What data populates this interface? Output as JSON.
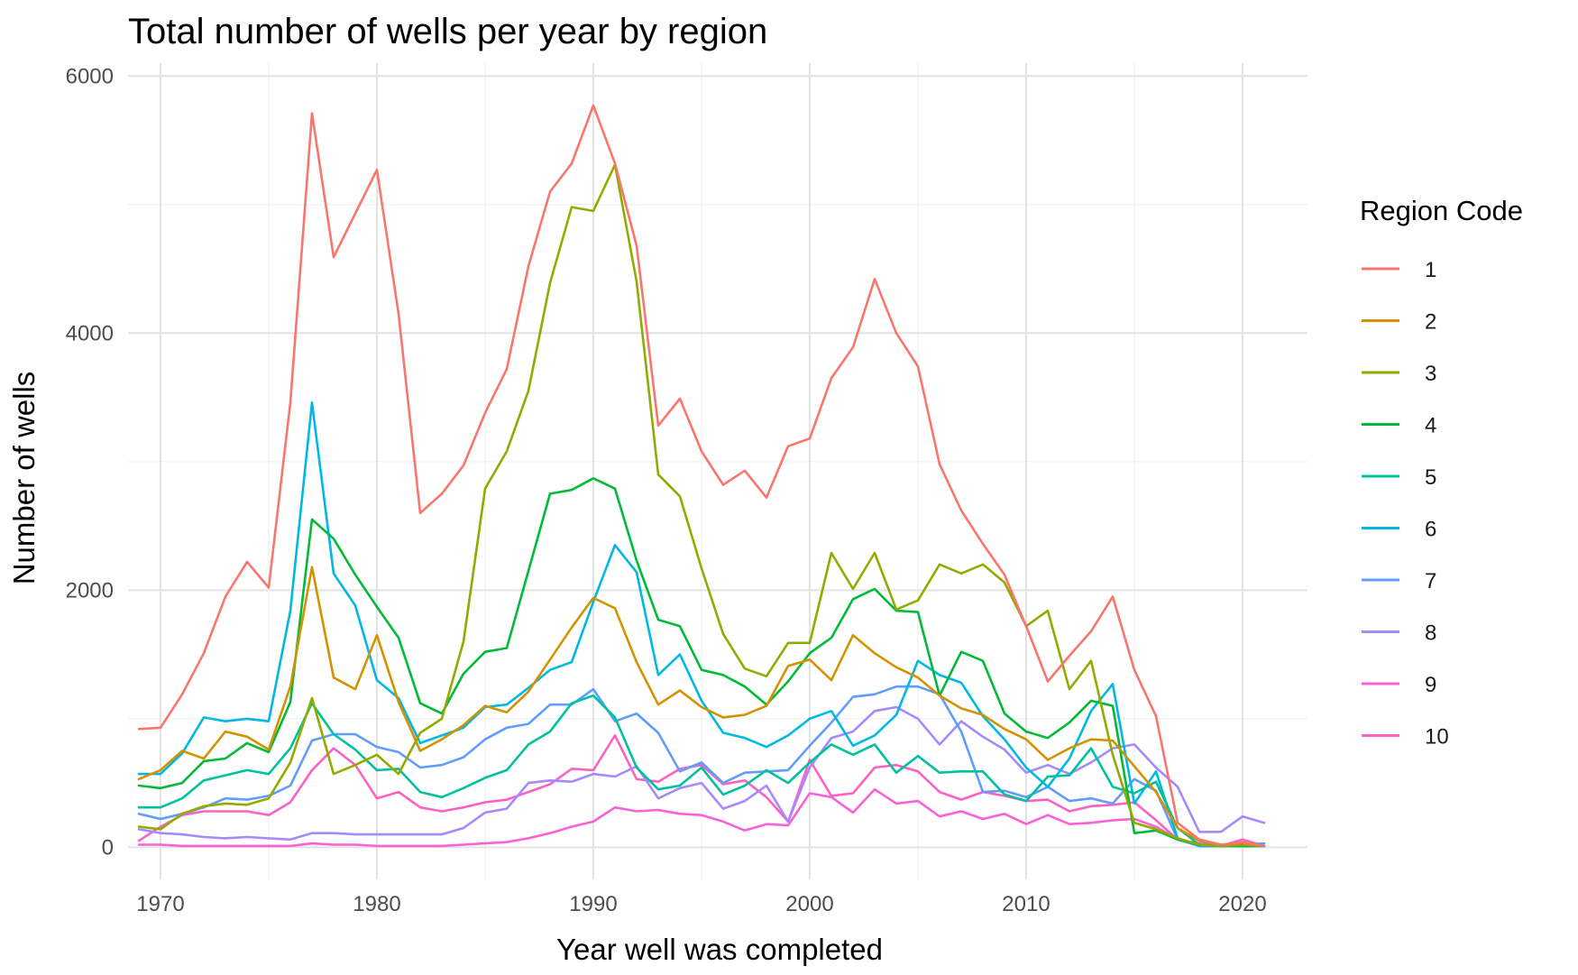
{
  "chart_data": {
    "type": "line",
    "title": "Total number of wells per year by region",
    "xlabel": "Year well was completed",
    "ylabel": "Number of wells",
    "xlim": [
      1968.5,
      2023
    ],
    "ylim": [
      -250,
      6100
    ],
    "x_ticks": [
      1970,
      1980,
      1990,
      2000,
      2010,
      2020
    ],
    "y_ticks": [
      0,
      2000,
      4000,
      6000
    ],
    "grid": true,
    "legend": {
      "title": "Region Code",
      "placement": "right"
    },
    "x": [
      1969,
      1970,
      1971,
      1972,
      1973,
      1974,
      1975,
      1976,
      1977,
      1978,
      1979,
      1980,
      1981,
      1982,
      1983,
      1984,
      1985,
      1986,
      1987,
      1988,
      1989,
      1990,
      1991,
      1992,
      1993,
      1994,
      1995,
      1996,
      1997,
      1998,
      1999,
      2000,
      2001,
      2002,
      2003,
      2004,
      2005,
      2006,
      2007,
      2008,
      2009,
      2010,
      2011,
      2012,
      2013,
      2014,
      2015,
      2016,
      2017,
      2018,
      2019,
      2020,
      2021
    ],
    "series": [
      {
        "name": "1",
        "color": "#F8766D",
        "values": [
          920,
          930,
          1190,
          1510,
          1950,
          2220,
          2020,
          3460,
          5710,
          4590,
          4930,
          5270,
          4150,
          2600,
          2750,
          2970,
          3380,
          3720,
          4520,
          5100,
          5320,
          5770,
          5320,
          4680,
          3280,
          3490,
          3080,
          2820,
          2930,
          2720,
          3120,
          3180,
          3650,
          3890,
          4420,
          4000,
          3740,
          2980,
          2620,
          2360,
          2120,
          1720,
          1290,
          1490,
          1680,
          1950,
          1380,
          1020,
          190,
          60,
          20,
          40,
          10
        ]
      },
      {
        "name": "2",
        "color": "#D39200",
        "values": [
          530,
          600,
          750,
          690,
          900,
          860,
          760,
          1250,
          2180,
          1320,
          1230,
          1650,
          1130,
          750,
          840,
          950,
          1100,
          1050,
          1210,
          1460,
          1710,
          1940,
          1860,
          1440,
          1110,
          1220,
          1090,
          1010,
          1030,
          1100,
          1410,
          1460,
          1300,
          1650,
          1510,
          1400,
          1320,
          1180,
          1080,
          1030,
          920,
          840,
          680,
          770,
          840,
          830,
          630,
          430,
          150,
          50,
          20,
          30,
          10
        ]
      },
      {
        "name": "3",
        "color": "#93AA00",
        "values": [
          160,
          140,
          260,
          320,
          340,
          330,
          380,
          660,
          1160,
          570,
          640,
          720,
          570,
          890,
          1000,
          1600,
          2790,
          3080,
          3550,
          4390,
          4980,
          4950,
          5310,
          4400,
          2900,
          2730,
          2170,
          1660,
          1390,
          1330,
          1590,
          1590,
          2290,
          2010,
          2290,
          1850,
          1920,
          2200,
          2130,
          2200,
          2060,
          1720,
          1840,
          1230,
          1450,
          720,
          190,
          140,
          70,
          20,
          10,
          20,
          10
        ]
      },
      {
        "name": "4",
        "color": "#00BA38",
        "values": [
          480,
          460,
          500,
          670,
          690,
          810,
          740,
          1130,
          2550,
          2400,
          2120,
          1870,
          1630,
          1120,
          1040,
          1350,
          1520,
          1550,
          2150,
          2750,
          2780,
          2870,
          2790,
          2230,
          1770,
          1720,
          1380,
          1340,
          1250,
          1110,
          1290,
          1510,
          1630,
          1930,
          2010,
          1840,
          1830,
          1180,
          1520,
          1450,
          1040,
          900,
          850,
          970,
          1140,
          1100,
          110,
          130,
          60,
          20,
          10,
          10,
          10
        ]
      },
      {
        "name": "5",
        "color": "#00C19F",
        "values": [
          310,
          310,
          380,
          520,
          560,
          600,
          570,
          770,
          1120,
          880,
          760,
          600,
          610,
          430,
          390,
          460,
          540,
          600,
          800,
          900,
          1120,
          1180,
          1010,
          620,
          450,
          480,
          620,
          410,
          480,
          600,
          500,
          660,
          800,
          720,
          800,
          580,
          710,
          580,
          590,
          590,
          410,
          360,
          550,
          560,
          770,
          470,
          420,
          510,
          150,
          20,
          10,
          10,
          10
        ]
      },
      {
        "name": "6",
        "color": "#00B9E3",
        "values": [
          570,
          570,
          730,
          1010,
          980,
          1000,
          980,
          1840,
          3460,
          2130,
          1880,
          1300,
          1160,
          810,
          870,
          930,
          1090,
          1110,
          1240,
          1380,
          1440,
          1910,
          2350,
          2140,
          1340,
          1500,
          1140,
          890,
          850,
          780,
          870,
          1000,
          1060,
          790,
          870,
          1030,
          1450,
          1340,
          1280,
          1020,
          840,
          620,
          470,
          690,
          1060,
          1270,
          340,
          590,
          70,
          10,
          10,
          20,
          10
        ]
      },
      {
        "name": "7",
        "color": "#619CFF",
        "values": [
          260,
          220,
          260,
          310,
          380,
          370,
          400,
          480,
          830,
          880,
          880,
          780,
          740,
          620,
          640,
          700,
          840,
          930,
          960,
          1110,
          1110,
          1230,
          980,
          1040,
          890,
          590,
          660,
          500,
          580,
          590,
          600,
          790,
          970,
          1170,
          1190,
          1250,
          1250,
          1190,
          900,
          430,
          440,
          390,
          470,
          360,
          380,
          340,
          530,
          440,
          60,
          10,
          10,
          20,
          30
        ]
      },
      {
        "name": "8",
        "color": "#A58AFF",
        "values": [
          140,
          110,
          100,
          80,
          70,
          80,
          70,
          60,
          110,
          110,
          100,
          100,
          100,
          100,
          100,
          150,
          270,
          300,
          500,
          520,
          510,
          570,
          550,
          630,
          380,
          460,
          500,
          300,
          360,
          480,
          200,
          620,
          850,
          900,
          1060,
          1090,
          1000,
          800,
          980,
          860,
          760,
          580,
          640,
          570,
          660,
          770,
          800,
          620,
          470,
          120,
          120,
          240,
          190
        ]
      },
      {
        "name": "9",
        "color": "#FB61D7",
        "values": [
          20,
          20,
          10,
          10,
          10,
          10,
          10,
          10,
          30,
          20,
          20,
          10,
          10,
          10,
          10,
          20,
          30,
          40,
          70,
          110,
          160,
          200,
          310,
          280,
          290,
          260,
          250,
          200,
          130,
          180,
          170,
          420,
          390,
          270,
          450,
          340,
          360,
          240,
          280,
          220,
          260,
          180,
          250,
          180,
          190,
          210,
          220,
          160,
          60,
          10,
          10,
          10,
          10
        ]
      },
      {
        "name": "10",
        "color": "#FF61C3",
        "values": [
          50,
          160,
          250,
          280,
          280,
          280,
          250,
          350,
          600,
          770,
          640,
          380,
          430,
          310,
          280,
          310,
          350,
          370,
          430,
          490,
          610,
          600,
          870,
          530,
          510,
          610,
          640,
          490,
          520,
          390,
          200,
          680,
          400,
          420,
          620,
          640,
          590,
          430,
          370,
          430,
          400,
          360,
          370,
          280,
          320,
          330,
          350,
          210,
          60,
          30,
          10,
          60,
          10
        ]
      }
    ]
  }
}
